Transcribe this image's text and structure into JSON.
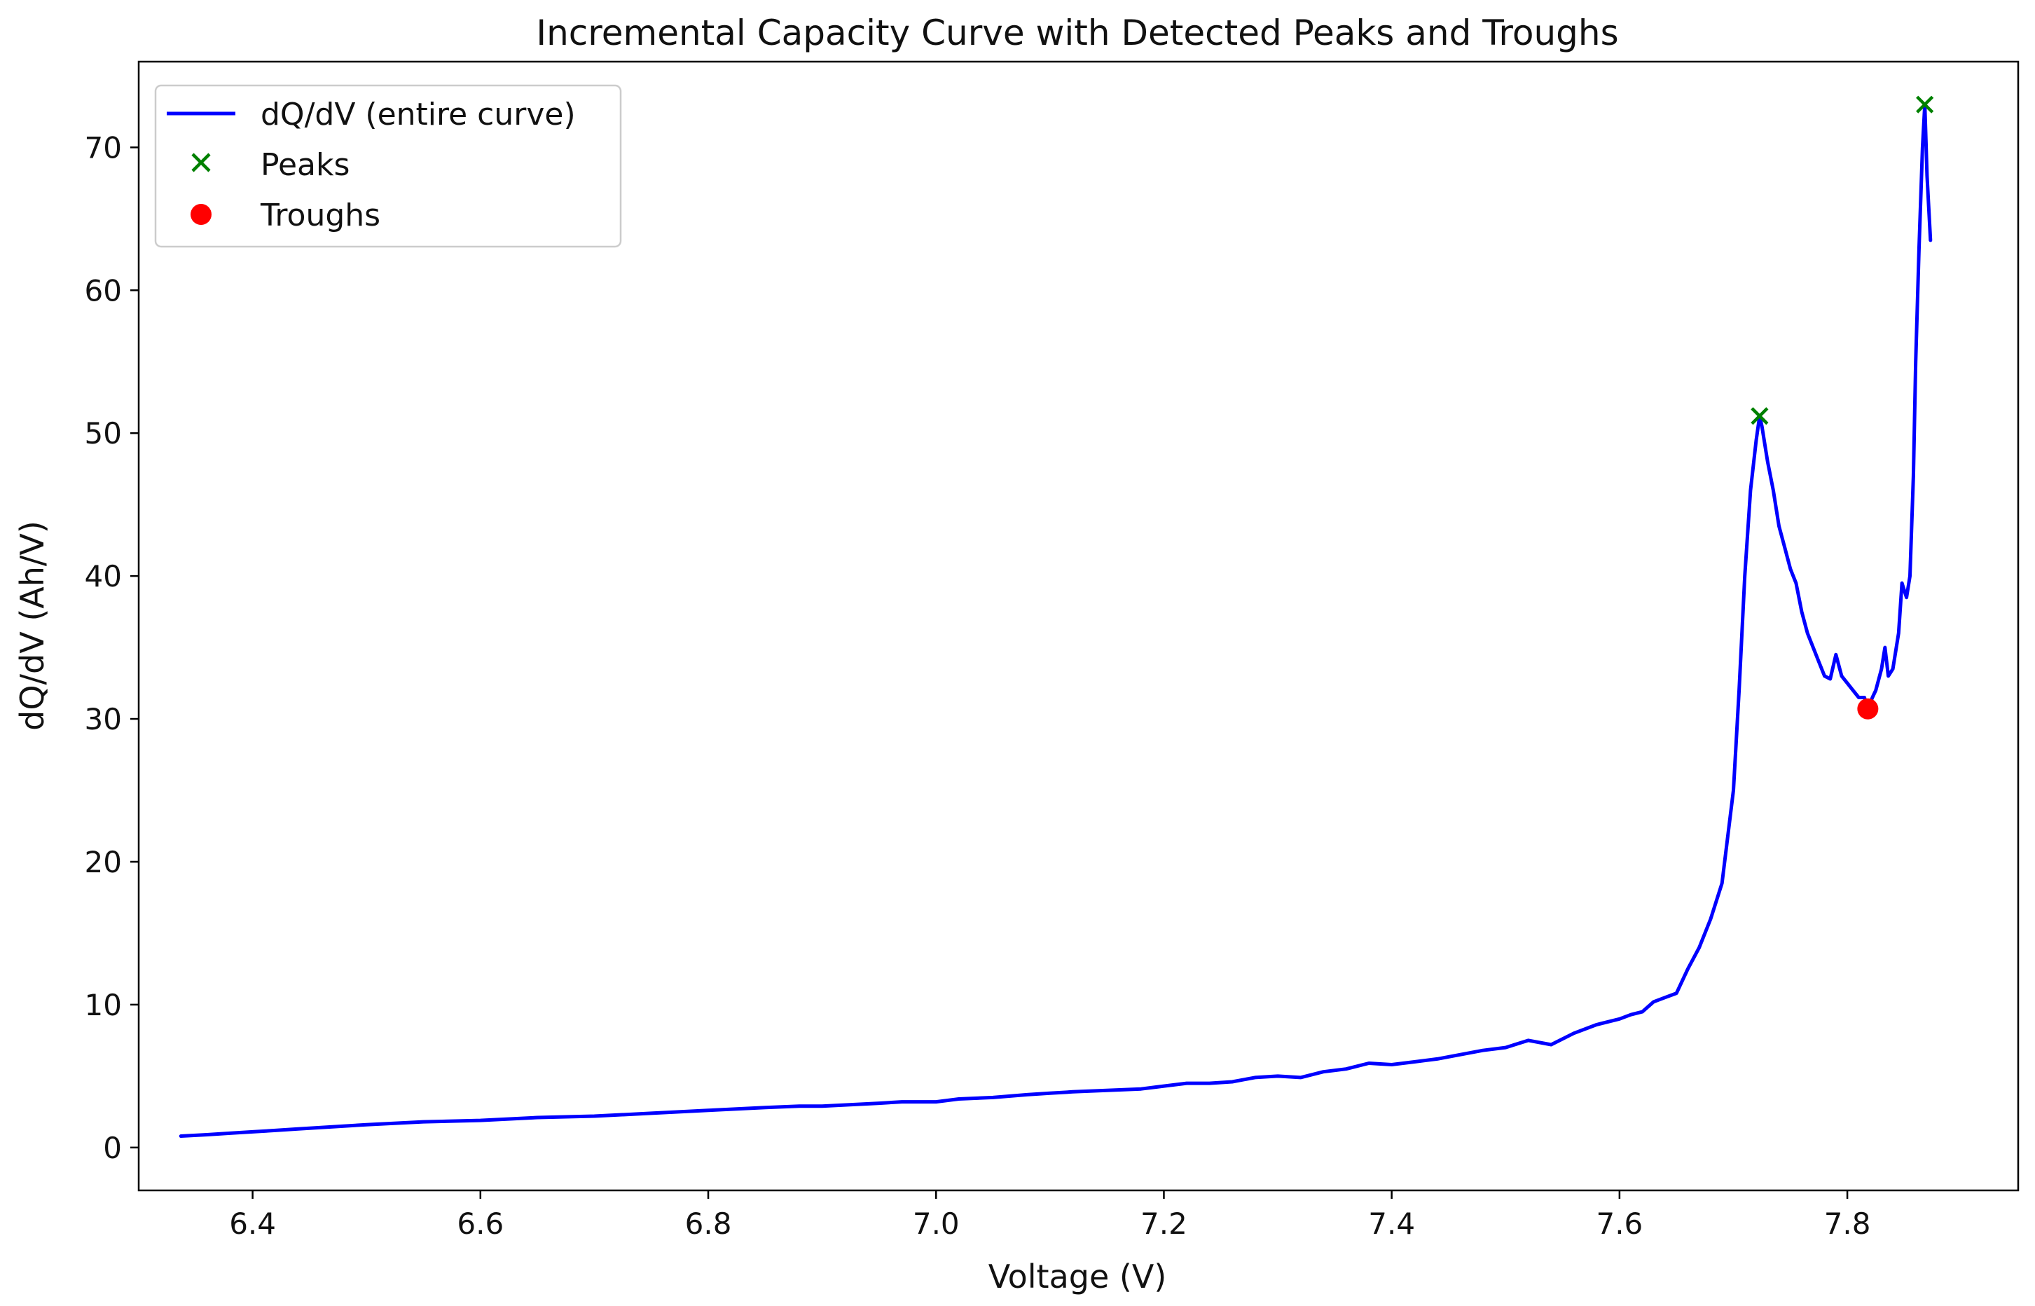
{
  "chart_data": {
    "type": "line",
    "title": "Incremental Capacity Curve with Detected Peaks and Troughs",
    "xlabel": "Voltage (V)",
    "ylabel": "dQ/dV (Ah/V)",
    "xlim": [
      6.3,
      7.95
    ],
    "ylim": [
      -3,
      76
    ],
    "xticks": [
      6.4,
      6.6,
      6.8,
      7.0,
      7.2,
      7.4,
      7.6,
      7.8
    ],
    "yticks": [
      0,
      10,
      20,
      30,
      40,
      50,
      60,
      70
    ],
    "grid": false,
    "legend": {
      "position": "top-left",
      "entries": [
        "dQ/dV (entire curve)",
        "Peaks",
        "Troughs"
      ]
    },
    "colors": {
      "curve": "#0000ff",
      "peaks": "#008000",
      "troughs": "#ff0000"
    },
    "series": [
      {
        "name": "dQ/dV (entire curve)",
        "x": [
          6.337,
          6.36,
          6.38,
          6.4,
          6.42,
          6.44,
          6.46,
          6.48,
          6.5,
          6.55,
          6.6,
          6.65,
          6.7,
          6.75,
          6.8,
          6.85,
          6.88,
          6.9,
          6.95,
          6.97,
          7.0,
          7.02,
          7.05,
          7.08,
          7.1,
          7.12,
          7.15,
          7.18,
          7.2,
          7.22,
          7.24,
          7.26,
          7.28,
          7.3,
          7.32,
          7.34,
          7.36,
          7.38,
          7.4,
          7.42,
          7.44,
          7.46,
          7.48,
          7.5,
          7.52,
          7.54,
          7.56,
          7.58,
          7.6,
          7.61,
          7.62,
          7.63,
          7.64,
          7.65,
          7.66,
          7.67,
          7.68,
          7.69,
          7.7,
          7.705,
          7.71,
          7.715,
          7.72,
          7.723,
          7.725,
          7.73,
          7.735,
          7.74,
          7.745,
          7.75,
          7.755,
          7.76,
          7.765,
          7.77,
          7.775,
          7.78,
          7.785,
          7.79,
          7.795,
          7.8,
          7.805,
          7.81,
          7.815,
          7.818,
          7.822,
          7.825,
          7.83,
          7.833,
          7.836,
          7.84,
          7.845,
          7.848,
          7.852,
          7.855,
          7.858,
          7.86,
          7.863,
          7.866,
          7.868,
          7.87,
          7.873
        ],
        "y": [
          0.8,
          0.9,
          1.0,
          1.1,
          1.2,
          1.3,
          1.4,
          1.5,
          1.6,
          1.8,
          1.9,
          2.1,
          2.2,
          2.4,
          2.6,
          2.8,
          2.9,
          2.9,
          3.1,
          3.2,
          3.2,
          3.4,
          3.5,
          3.7,
          3.8,
          3.9,
          4.0,
          4.1,
          4.3,
          4.5,
          4.5,
          4.6,
          4.9,
          5.0,
          4.9,
          5.3,
          5.5,
          5.9,
          5.8,
          6.0,
          6.2,
          6.5,
          6.8,
          7.0,
          7.5,
          7.2,
          8.0,
          8.6,
          9.0,
          9.3,
          9.5,
          10.2,
          10.5,
          10.8,
          12.5,
          14.0,
          16.0,
          18.5,
          25.0,
          32.0,
          40.0,
          46.0,
          49.5,
          51.2,
          50.5,
          48.0,
          46.0,
          43.5,
          42.0,
          40.5,
          39.5,
          37.5,
          36.0,
          35.0,
          34.0,
          33.0,
          32.8,
          34.5,
          33.0,
          32.5,
          32.0,
          31.5,
          31.5,
          30.7,
          31.5,
          32.0,
          33.5,
          35.0,
          33.0,
          33.5,
          36.0,
          39.5,
          38.5,
          40.0,
          47.0,
          55.0,
          63.0,
          70.0,
          73.0,
          68.0,
          63.5
        ]
      },
      {
        "name": "Peaks",
        "x": [
          7.723,
          7.868
        ],
        "y": [
          51.2,
          73.0
        ]
      },
      {
        "name": "Troughs",
        "x": [
          7.818
        ],
        "y": [
          30.7
        ]
      }
    ]
  }
}
